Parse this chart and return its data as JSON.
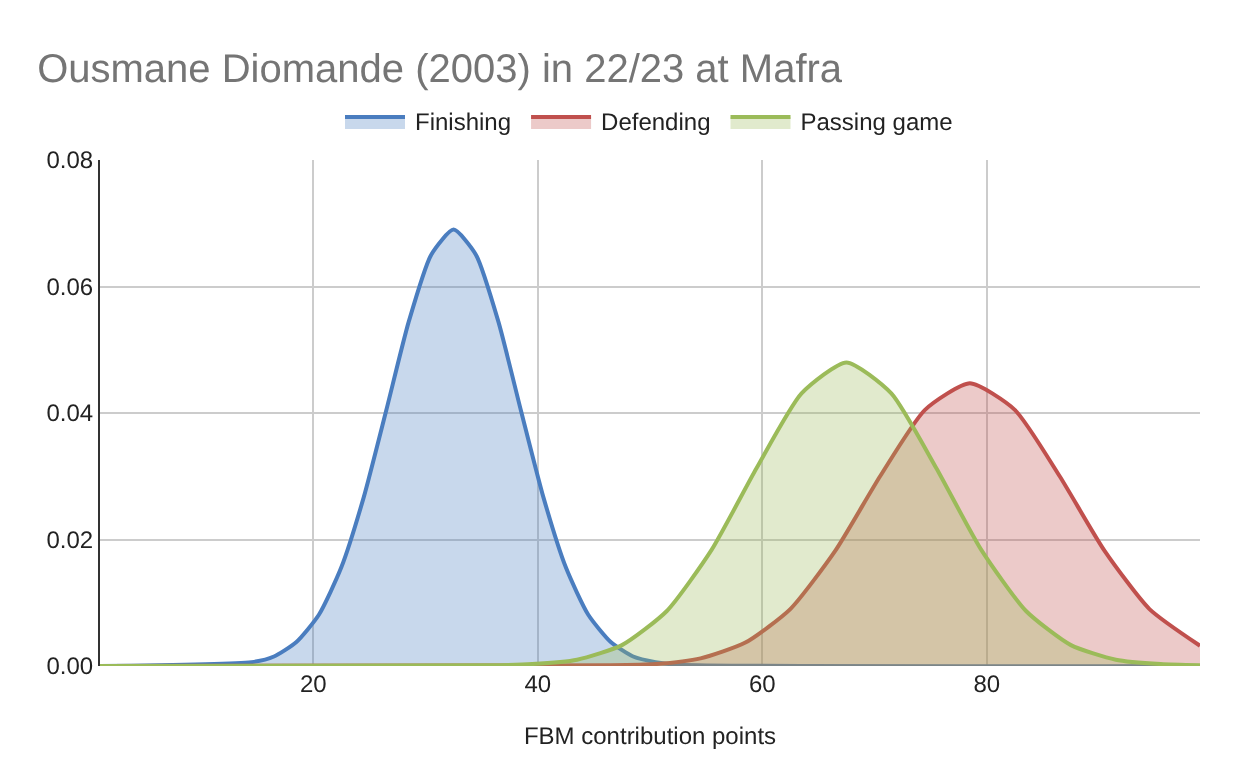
{
  "chart_data": {
    "type": "area",
    "title": "Ousmane Diomande (2003) in 22/23 at Mafra",
    "xlabel": "FBM contribution points",
    "series": [
      {
        "name": "Finishing",
        "color": "#4a7dbf",
        "x": [
          1,
          14.5,
          16.5,
          18.5,
          20.5,
          22.5,
          24.5,
          26.5,
          28.5,
          30.5,
          32.5,
          34.5,
          36.5,
          38.5,
          40.5,
          42.5,
          44.5,
          46.5,
          48.5,
          50.5,
          52.5,
          99
        ],
        "values": [
          0,
          0.0006,
          0.0015,
          0.0038,
          0.0081,
          0.0156,
          0.0267,
          0.0404,
          0.0544,
          0.065,
          0.069,
          0.065,
          0.0544,
          0.0404,
          0.0267,
          0.0156,
          0.0081,
          0.0038,
          0.0015,
          0.0006,
          0.0002,
          0
        ]
      },
      {
        "name": "Defending",
        "color": "#c0504d",
        "x": [
          1,
          46.5,
          50.5,
          54.5,
          58.5,
          62.5,
          66.5,
          70.5,
          74.5,
          78.5,
          82.5,
          86.5,
          90.5,
          94.5,
          99
        ],
        "values": [
          0,
          0.0001,
          0.0003,
          0.0012,
          0.0037,
          0.009,
          0.0182,
          0.03,
          0.0405,
          0.0447,
          0.0405,
          0.03,
          0.0182,
          0.009,
          0.0032
        ]
      },
      {
        "name": "Passing game",
        "color": "#9bbb59",
        "x": [
          1,
          35.5,
          39.5,
          43.5,
          47.5,
          51.5,
          55.5,
          59.5,
          63.5,
          67.5,
          71.5,
          75.5,
          79.5,
          83.5,
          87.5,
          91.5,
          95.5,
          99
        ],
        "values": [
          0,
          0.0001,
          0.0003,
          0.001,
          0.0033,
          0.0087,
          0.0184,
          0.0313,
          0.0431,
          0.048,
          0.0431,
          0.0313,
          0.0184,
          0.0087,
          0.0033,
          0.001,
          0.0003,
          0.0001
        ]
      }
    ],
    "xlim": [
      1,
      99
    ],
    "xticks": [
      20,
      40,
      60,
      80
    ],
    "ylim": [
      0,
      0.08
    ],
    "yticks": [
      {
        "value": 0,
        "label": "0.00"
      },
      {
        "value": 0.02,
        "label": "0.02"
      },
      {
        "value": 0.04,
        "label": "0.04"
      },
      {
        "value": 0.06,
        "label": "0.06"
      },
      {
        "value": 0.08,
        "label": "0.08"
      }
    ],
    "grid": true,
    "legend": "top",
    "marker": "none",
    "line_style": "solid"
  }
}
